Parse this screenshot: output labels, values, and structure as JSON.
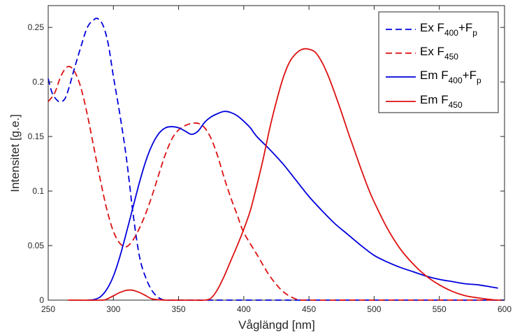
{
  "chart_data": {
    "type": "line",
    "xlabel": "Våglängd [nm]",
    "ylabel": "Intensitet [g.e.]",
    "xlim": [
      250,
      600
    ],
    "ylim": [
      0,
      0.27
    ],
    "xticks": [
      "250",
      "300",
      "350",
      "400",
      "450",
      "500",
      "550",
      "600"
    ],
    "xtick_values": [
      250,
      300,
      350,
      400,
      450,
      500,
      550,
      600
    ],
    "yticks": [
      "0",
      "0.05",
      "0.1",
      "0.15",
      "0.2",
      "0.25"
    ],
    "ytick_values": [
      0,
      0.05,
      0.1,
      0.15,
      0.2,
      0.25
    ],
    "grid": false,
    "legend_position": "top-right",
    "series": [
      {
        "name": "Ex F400+Fp",
        "legend": {
          "pre": "Ex F",
          "sub1": "400",
          "mid": "+F",
          "sub2": "p"
        },
        "color": "#0000dd",
        "dash": true,
        "x": [
          250,
          253,
          257,
          260,
          263,
          266,
          270,
          275,
          280,
          285,
          288,
          292,
          296,
          300,
          305,
          310,
          315,
          320,
          325,
          330,
          335,
          340,
          350,
          400,
          500,
          600
        ],
        "y": [
          0.203,
          0.19,
          0.183,
          0.182,
          0.185,
          0.195,
          0.212,
          0.232,
          0.25,
          0.257,
          0.258,
          0.252,
          0.235,
          0.205,
          0.17,
          0.13,
          0.08,
          0.04,
          0.02,
          0.008,
          0.002,
          0,
          0,
          0,
          0,
          0
        ]
      },
      {
        "name": "Ex F450",
        "legend": {
          "pre": "Ex  F",
          "sub1": "450",
          "mid": "",
          "sub2": ""
        },
        "color": "#dd1111",
        "dash": true,
        "x": [
          250,
          255,
          260,
          265,
          270,
          275,
          280,
          285,
          290,
          295,
          300,
          305,
          310,
          315,
          320,
          325,
          330,
          335,
          340,
          345,
          350,
          355,
          360,
          365,
          370,
          375,
          380,
          385,
          390,
          395,
          400,
          410,
          420,
          430,
          440,
          450,
          500,
          600
        ],
        "y": [
          0.182,
          0.19,
          0.206,
          0.214,
          0.21,
          0.195,
          0.17,
          0.14,
          0.11,
          0.083,
          0.063,
          0.052,
          0.049,
          0.055,
          0.066,
          0.08,
          0.097,
          0.116,
          0.134,
          0.148,
          0.156,
          0.16,
          0.162,
          0.162,
          0.158,
          0.148,
          0.132,
          0.112,
          0.094,
          0.078,
          0.062,
          0.042,
          0.022,
          0.008,
          0.001,
          0,
          0,
          0
        ]
      },
      {
        "name": "Em F400+Fp",
        "legend": {
          "pre": "Em F",
          "sub1": "400",
          "mid": "+F",
          "sub2": "p"
        },
        "color": "#0000dd",
        "dash": false,
        "x": [
          280,
          285,
          290,
          295,
          300,
          305,
          310,
          315,
          320,
          325,
          330,
          335,
          340,
          345,
          350,
          355,
          360,
          365,
          370,
          375,
          380,
          385,
          390,
          395,
          400,
          405,
          410,
          420,
          430,
          440,
          450,
          460,
          470,
          480,
          490,
          500,
          510,
          520,
          530,
          540,
          550,
          560,
          570,
          580,
          590,
          595
        ],
        "y": [
          0,
          0.0005,
          0.003,
          0.01,
          0.022,
          0.04,
          0.062,
          0.085,
          0.108,
          0.128,
          0.143,
          0.153,
          0.158,
          0.159,
          0.158,
          0.155,
          0.152,
          0.155,
          0.163,
          0.168,
          0.171,
          0.173,
          0.172,
          0.169,
          0.164,
          0.158,
          0.15,
          0.138,
          0.125,
          0.11,
          0.095,
          0.082,
          0.07,
          0.06,
          0.05,
          0.041,
          0.035,
          0.03,
          0.026,
          0.022,
          0.019,
          0.017,
          0.015,
          0.014,
          0.012,
          0.011
        ]
      },
      {
        "name": "Em F450",
        "legend": {
          "pre": "Em  F",
          "sub1": "450",
          "mid": "",
          "sub2": ""
        },
        "color": "#dd1111",
        "dash": false,
        "x": [
          265,
          290,
          295,
          300,
          305,
          310,
          315,
          320,
          325,
          330,
          340,
          350,
          360,
          370,
          375,
          380,
          385,
          390,
          395,
          400,
          405,
          410,
          415,
          420,
          425,
          430,
          435,
          440,
          445,
          450,
          455,
          460,
          465,
          470,
          475,
          480,
          485,
          490,
          495,
          500,
          510,
          520,
          530,
          540,
          550,
          560,
          570,
          580,
          590,
          595
        ],
        "y": [
          0,
          0,
          0.001,
          0.004,
          0.007,
          0.009,
          0.009,
          0.007,
          0.004,
          0.001,
          0,
          0,
          0,
          0,
          0.002,
          0.01,
          0.022,
          0.036,
          0.05,
          0.065,
          0.082,
          0.105,
          0.13,
          0.158,
          0.182,
          0.203,
          0.218,
          0.226,
          0.23,
          0.23,
          0.227,
          0.218,
          0.205,
          0.189,
          0.172,
          0.154,
          0.137,
          0.12,
          0.104,
          0.09,
          0.066,
          0.047,
          0.033,
          0.022,
          0.014,
          0.008,
          0.004,
          0.002,
          0.0005,
          0
        ]
      }
    ]
  }
}
